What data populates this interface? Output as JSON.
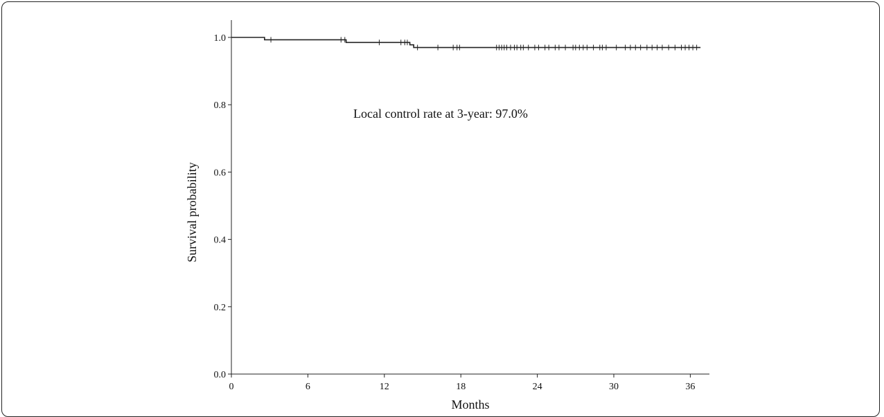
{
  "chart_data": {
    "type": "line",
    "title": "",
    "xlabel": "Months",
    "ylabel": "Survival probability",
    "annotation": "Local control rate at 3-year: 97.0%",
    "xlim": [
      0,
      37
    ],
    "ylim": [
      0,
      1.0
    ],
    "x_ticks": [
      0,
      6,
      12,
      18,
      24,
      30,
      36
    ],
    "x_tick_labels": [
      "0",
      "6",
      "12",
      "18",
      "24",
      "30",
      "36"
    ],
    "y_ticks": [
      0.0,
      0.2,
      0.4,
      0.6,
      0.8,
      1.0
    ],
    "y_tick_labels": [
      "0.0",
      "0.2",
      "0.4",
      "0.6",
      "0.8",
      "1.0"
    ],
    "grid": false,
    "legend": "none",
    "line_color": "#222222",
    "series": [
      {
        "steps": [
          {
            "x": 0,
            "y": 1.0
          },
          {
            "x": 2.6,
            "y": 0.993
          },
          {
            "x": 9.0,
            "y": 0.985
          },
          {
            "x": 14.0,
            "y": 0.978
          },
          {
            "x": 14.3,
            "y": 0.97
          },
          {
            "x": 36.8,
            "y": 0.97
          }
        ],
        "censored": [
          {
            "x": 3.1,
            "y": 0.993
          },
          {
            "x": 8.6,
            "y": 0.993
          },
          {
            "x": 8.9,
            "y": 0.993
          },
          {
            "x": 11.6,
            "y": 0.985
          },
          {
            "x": 13.3,
            "y": 0.985
          },
          {
            "x": 13.6,
            "y": 0.985
          },
          {
            "x": 13.8,
            "y": 0.985
          },
          {
            "x": 14.6,
            "y": 0.97
          },
          {
            "x": 16.2,
            "y": 0.97
          },
          {
            "x": 17.4,
            "y": 0.97
          },
          {
            "x": 17.7,
            "y": 0.97
          },
          {
            "x": 17.9,
            "y": 0.97
          },
          {
            "x": 20.8,
            "y": 0.97
          },
          {
            "x": 21.0,
            "y": 0.97
          },
          {
            "x": 21.2,
            "y": 0.97
          },
          {
            "x": 21.4,
            "y": 0.97
          },
          {
            "x": 21.6,
            "y": 0.97
          },
          {
            "x": 21.9,
            "y": 0.97
          },
          {
            "x": 22.2,
            "y": 0.97
          },
          {
            "x": 22.4,
            "y": 0.97
          },
          {
            "x": 22.7,
            "y": 0.97
          },
          {
            "x": 22.9,
            "y": 0.97
          },
          {
            "x": 23.3,
            "y": 0.97
          },
          {
            "x": 23.8,
            "y": 0.97
          },
          {
            "x": 24.1,
            "y": 0.97
          },
          {
            "x": 24.6,
            "y": 0.97
          },
          {
            "x": 24.9,
            "y": 0.97
          },
          {
            "x": 25.4,
            "y": 0.97
          },
          {
            "x": 25.7,
            "y": 0.97
          },
          {
            "x": 26.2,
            "y": 0.97
          },
          {
            "x": 26.8,
            "y": 0.97
          },
          {
            "x": 27.0,
            "y": 0.97
          },
          {
            "x": 27.3,
            "y": 0.97
          },
          {
            "x": 27.6,
            "y": 0.97
          },
          {
            "x": 27.9,
            "y": 0.97
          },
          {
            "x": 28.4,
            "y": 0.97
          },
          {
            "x": 28.9,
            "y": 0.97
          },
          {
            "x": 29.1,
            "y": 0.97
          },
          {
            "x": 29.4,
            "y": 0.97
          },
          {
            "x": 30.2,
            "y": 0.97
          },
          {
            "x": 30.9,
            "y": 0.97
          },
          {
            "x": 31.3,
            "y": 0.97
          },
          {
            "x": 31.7,
            "y": 0.97
          },
          {
            "x": 32.1,
            "y": 0.97
          },
          {
            "x": 32.6,
            "y": 0.97
          },
          {
            "x": 33.0,
            "y": 0.97
          },
          {
            "x": 33.4,
            "y": 0.97
          },
          {
            "x": 33.8,
            "y": 0.97
          },
          {
            "x": 34.3,
            "y": 0.97
          },
          {
            "x": 34.8,
            "y": 0.97
          },
          {
            "x": 35.3,
            "y": 0.97
          },
          {
            "x": 35.6,
            "y": 0.97
          },
          {
            "x": 35.9,
            "y": 0.97
          },
          {
            "x": 36.2,
            "y": 0.97
          },
          {
            "x": 36.5,
            "y": 0.97
          }
        ]
      }
    ]
  }
}
